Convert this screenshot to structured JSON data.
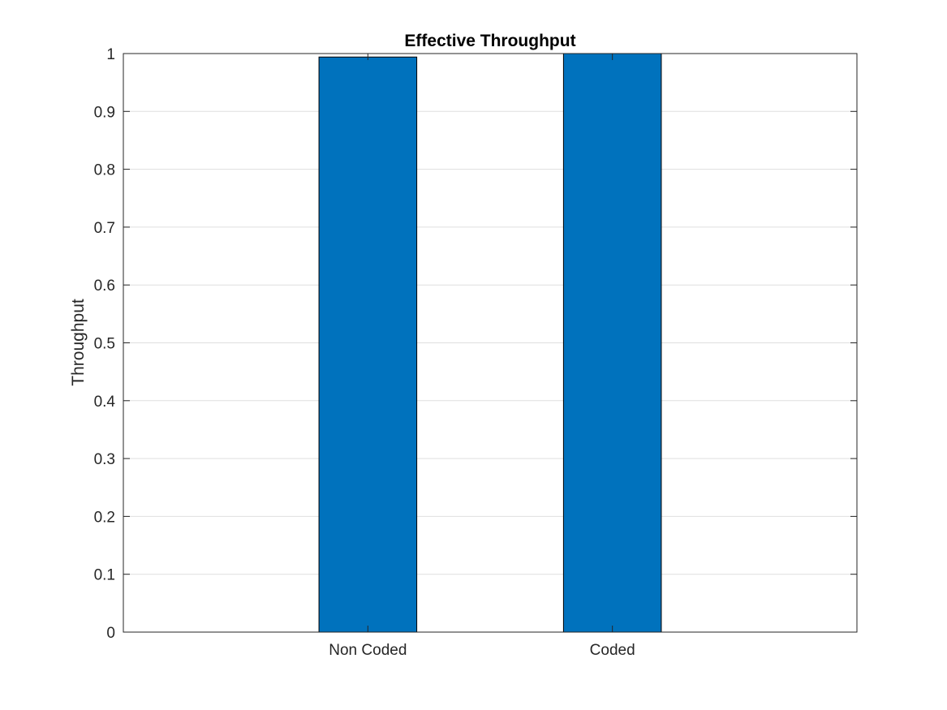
{
  "chart_data": {
    "type": "bar",
    "title": "Effective Throughput",
    "xlabel": "",
    "ylabel": "Throughput",
    "categories": [
      "Non Coded",
      "Coded"
    ],
    "values": [
      0.994,
      1.0
    ],
    "ylim": [
      0,
      1
    ],
    "yticks": [
      0,
      0.1,
      0.2,
      0.3,
      0.4,
      0.5,
      0.6,
      0.7,
      0.8,
      0.9,
      1
    ],
    "ytick_labels": [
      "0",
      "0.1",
      "0.2",
      "0.3",
      "0.4",
      "0.5",
      "0.6",
      "0.7",
      "0.8",
      "0.9",
      "1"
    ],
    "grid": "horizontal",
    "bar_color": "#0072BD",
    "axis_color": "#262626",
    "grid_color": "#dfdfdf"
  }
}
